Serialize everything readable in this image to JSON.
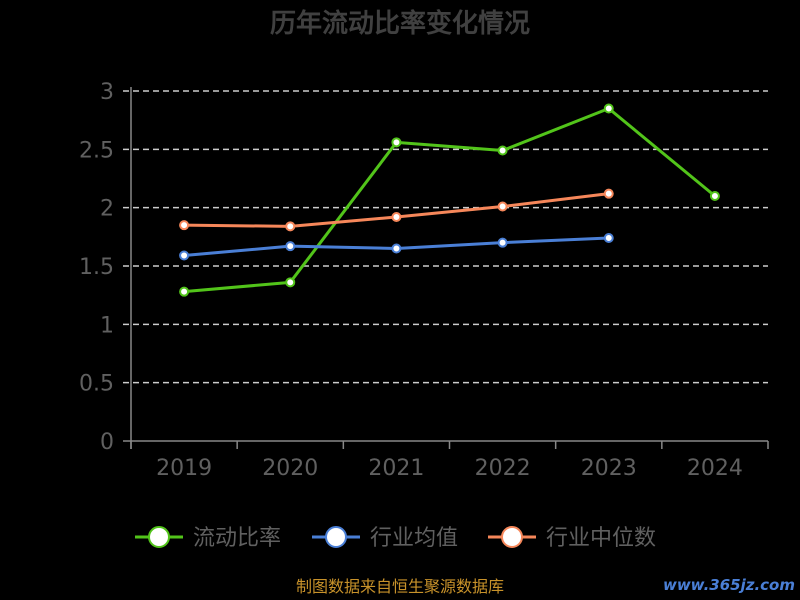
{
  "chart_data": {
    "type": "line",
    "title": "历年流动比率变化情况",
    "source_note": "制图数据来自恒生聚源数据库",
    "watermark": "www.365jz.com",
    "categories": [
      "2019",
      "2020",
      "2021",
      "2022",
      "2023",
      "2024"
    ],
    "y_ticks": [
      "0",
      "0.5",
      "1",
      "1.5",
      "2",
      "2.5",
      "3"
    ],
    "ylim": [
      0,
      3
    ],
    "grid": true,
    "legend_position": "bottom",
    "series": [
      {
        "name": "流动比率",
        "color": "#52c41a",
        "values": [
          1.28,
          1.36,
          2.56,
          2.49,
          2.85,
          2.1
        ]
      },
      {
        "name": "行业均值",
        "color": "#4a7fd6",
        "values": [
          1.59,
          1.67,
          1.65,
          1.7,
          1.74,
          null
        ]
      },
      {
        "name": "行业中位数",
        "color": "#f6875a",
        "values": [
          1.85,
          1.84,
          1.92,
          2.01,
          2.12,
          null
        ]
      }
    ],
    "colors": {
      "title": "#404040",
      "axis_text": "#606060",
      "grid": "#cccccc",
      "axis": "#888888",
      "source": "#c8922a",
      "watermark": "#4a7fd6"
    }
  }
}
